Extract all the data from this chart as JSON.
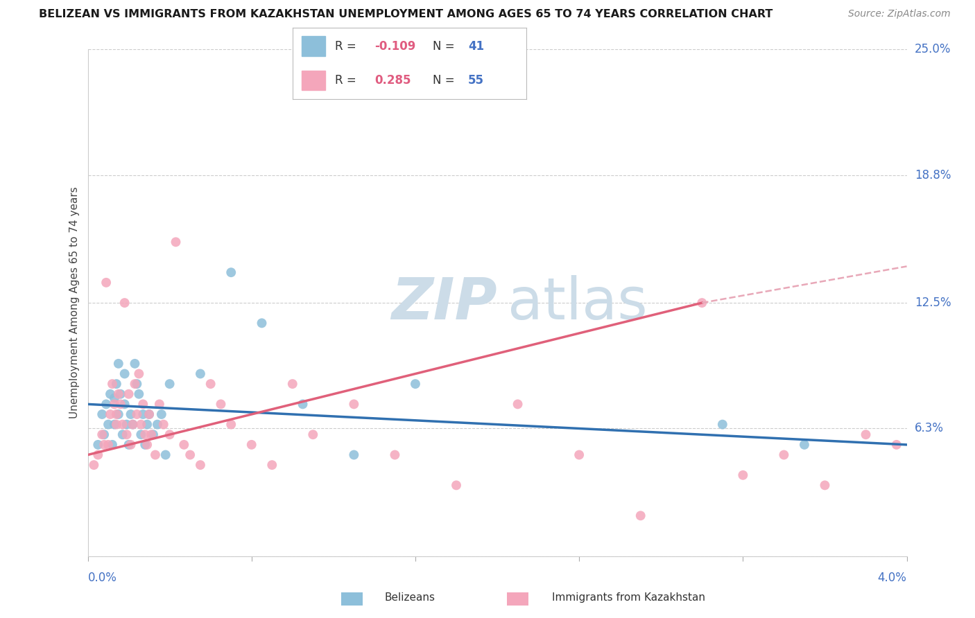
{
  "title": "BELIZEAN VS IMMIGRANTS FROM KAZAKHSTAN UNEMPLOYMENT AMONG AGES 65 TO 74 YEARS CORRELATION CHART",
  "source": "Source: ZipAtlas.com",
  "ylabel": "Unemployment Among Ages 65 to 74 years",
  "xmin": 0.0,
  "xmax": 4.0,
  "ymin": 0.0,
  "ymax": 25.0,
  "ytick_positions": [
    0.0,
    6.3,
    12.5,
    18.8,
    25.0
  ],
  "ytick_labels": [
    "0.0%",
    "6.3%",
    "12.5%",
    "18.8%",
    "25.0%"
  ],
  "xtick_positions": [
    0.0,
    0.8,
    1.6,
    2.4,
    3.2,
    4.0
  ],
  "belizean_color": "#8dbfda",
  "kazakh_color": "#f4a6bb",
  "belizean_line_color": "#3070b0",
  "kazakh_line_color": "#e0607a",
  "kazakh_dash_color": "#e8a8b8",
  "watermark_color": "#ccdce8",
  "bx": [
    0.05,
    0.07,
    0.08,
    0.09,
    0.1,
    0.11,
    0.12,
    0.13,
    0.13,
    0.14,
    0.15,
    0.15,
    0.16,
    0.17,
    0.18,
    0.18,
    0.19,
    0.2,
    0.21,
    0.22,
    0.23,
    0.24,
    0.25,
    0.26,
    0.27,
    0.28,
    0.29,
    0.3,
    0.32,
    0.34,
    0.36,
    0.38,
    0.4,
    0.55,
    0.7,
    0.85,
    1.05,
    1.3,
    1.6,
    3.1,
    3.5
  ],
  "by": [
    5.5,
    7.0,
    6.0,
    7.5,
    6.5,
    8.0,
    5.5,
    7.8,
    6.5,
    8.5,
    9.5,
    7.0,
    8.0,
    6.0,
    9.0,
    7.5,
    6.5,
    5.5,
    7.0,
    6.5,
    9.5,
    8.5,
    8.0,
    6.0,
    7.0,
    5.5,
    6.5,
    7.0,
    6.0,
    6.5,
    7.0,
    5.0,
    8.5,
    9.0,
    14.0,
    11.5,
    7.5,
    5.0,
    8.5,
    6.5,
    5.5
  ],
  "kx": [
    0.03,
    0.05,
    0.07,
    0.08,
    0.09,
    0.1,
    0.11,
    0.12,
    0.13,
    0.14,
    0.14,
    0.15,
    0.16,
    0.17,
    0.18,
    0.19,
    0.2,
    0.21,
    0.22,
    0.23,
    0.24,
    0.25,
    0.26,
    0.27,
    0.28,
    0.29,
    0.3,
    0.31,
    0.33,
    0.35,
    0.37,
    0.4,
    0.43,
    0.47,
    0.5,
    0.55,
    0.6,
    0.65,
    0.7,
    0.8,
    0.9,
    1.0,
    1.1,
    1.3,
    1.5,
    1.8,
    2.1,
    2.4,
    2.7,
    3.0,
    3.2,
    3.4,
    3.6,
    3.8,
    3.95
  ],
  "ky": [
    4.5,
    5.0,
    6.0,
    5.5,
    13.5,
    5.5,
    7.0,
    8.5,
    7.5,
    6.5,
    7.0,
    8.0,
    7.5,
    6.5,
    12.5,
    6.0,
    8.0,
    5.5,
    6.5,
    8.5,
    7.0,
    9.0,
    6.5,
    7.5,
    6.0,
    5.5,
    7.0,
    6.0,
    5.0,
    7.5,
    6.5,
    6.0,
    15.5,
    5.5,
    5.0,
    4.5,
    8.5,
    7.5,
    6.5,
    5.5,
    4.5,
    8.5,
    6.0,
    7.5,
    5.0,
    3.5,
    7.5,
    5.0,
    2.0,
    12.5,
    4.0,
    5.0,
    3.5,
    6.0,
    5.5
  ],
  "legend_r1": "-0.109",
  "legend_n1": "41",
  "legend_r2": "0.285",
  "legend_n2": "55"
}
